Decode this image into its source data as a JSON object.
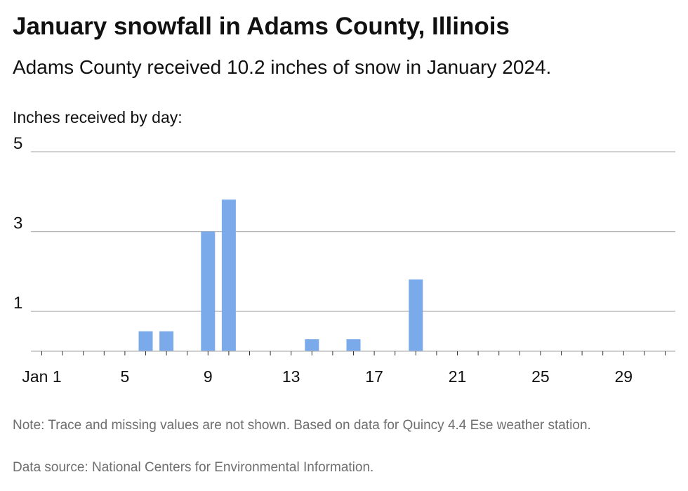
{
  "title": "January snowfall in Adams County, Illinois",
  "subtitle": "Adams County received 10.2 inches of snow in January 2024.",
  "note": "Note: Trace and missing values are not shown. Based on data for Quincy 4.4 Ese weather station.",
  "source": "Data source: National Centers for Environmental Information.",
  "colors": {
    "bar": "#7aaaea",
    "grid": "#b5b5b5",
    "axis": "#333333"
  },
  "chart_data": {
    "type": "bar",
    "ylabel": "Inches received by day:",
    "xlabel": "",
    "x_tick_labels": [
      "Jan 1",
      "5",
      "9",
      "13",
      "17",
      "21",
      "25",
      "29"
    ],
    "x_tick_days": [
      1,
      5,
      9,
      13,
      17,
      21,
      25,
      29
    ],
    "y_ticks": [
      1,
      3,
      5
    ],
    "ylim": [
      0,
      5
    ],
    "xlim": [
      1,
      31
    ],
    "grid": true,
    "points": [
      {
        "day": 6,
        "value": 0.5
      },
      {
        "day": 7,
        "value": 0.5
      },
      {
        "day": 9,
        "value": 3.0
      },
      {
        "day": 10,
        "value": 3.8
      },
      {
        "day": 14,
        "value": 0.3
      },
      {
        "day": 16,
        "value": 0.3
      },
      {
        "day": 19,
        "value": 1.8
      }
    ]
  }
}
